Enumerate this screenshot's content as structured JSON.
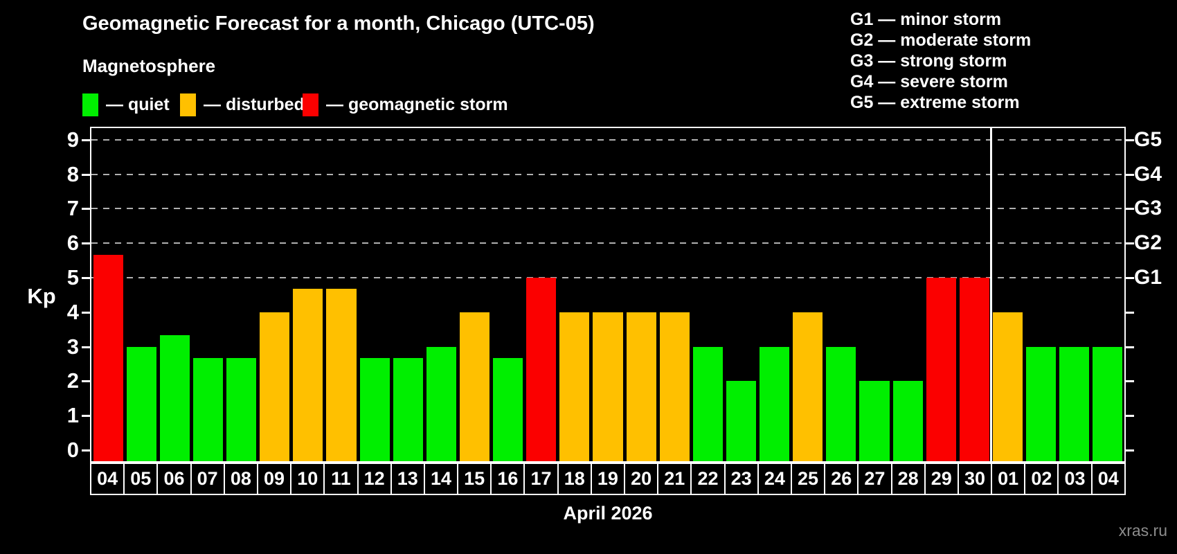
{
  "header": {
    "title": "Geomagnetic Forecast for a month, Chicago (UTC-05)",
    "subtitle": "Magnetosphere"
  },
  "legend": {
    "quiet": "— quiet",
    "disturbed": "— disturbed",
    "storm": "— geomagnetic storm"
  },
  "g_legend": {
    "lines": [
      "G1 — minor storm",
      "G2 — moderate storm",
      "G3 — strong storm",
      "G4 — severe storm",
      "G5 — extreme storm"
    ]
  },
  "footer": {
    "x_axis_title": "April 2026",
    "watermark": "xras.ru"
  },
  "chart_data": {
    "type": "bar",
    "title": "Geomagnetic Forecast for a month, Chicago (UTC-05)",
    "subtitle": "Magnetosphere",
    "xlabel": "April 2026",
    "ylabel": "Kp",
    "ylim": [
      0,
      9
    ],
    "grid": "horizontal dashed lines at Kp 5,6,7,8,9",
    "categories": [
      "04",
      "05",
      "06",
      "07",
      "08",
      "09",
      "10",
      "11",
      "12",
      "13",
      "14",
      "15",
      "16",
      "17",
      "18",
      "19",
      "20",
      "21",
      "22",
      "23",
      "24",
      "25",
      "26",
      "27",
      "28",
      "29",
      "30",
      "01",
      "02",
      "03",
      "04"
    ],
    "values": [
      5.67,
      3.0,
      3.33,
      2.67,
      2.67,
      4.0,
      4.67,
      4.67,
      2.67,
      2.67,
      3.0,
      4.0,
      2.67,
      5.0,
      4.0,
      4.0,
      4.0,
      4.0,
      3.0,
      2.0,
      3.0,
      4.0,
      3.0,
      2.0,
      2.0,
      5.0,
      5.0,
      4.0,
      3.0,
      3.0,
      3.0
    ],
    "statuses": [
      "storm",
      "quiet",
      "quiet",
      "quiet",
      "quiet",
      "disturbed",
      "disturbed",
      "disturbed",
      "quiet",
      "quiet",
      "quiet",
      "disturbed",
      "quiet",
      "storm",
      "disturbed",
      "disturbed",
      "disturbed",
      "disturbed",
      "quiet",
      "quiet",
      "quiet",
      "disturbed",
      "quiet",
      "quiet",
      "quiet",
      "storm",
      "storm",
      "disturbed",
      "quiet",
      "quiet",
      "quiet"
    ],
    "status_colors": {
      "quiet": "#00ef00",
      "disturbed": "#ffc000",
      "storm": "#fb0000"
    },
    "left_axis_ticks": [
      0,
      1,
      2,
      3,
      4,
      5,
      6,
      7,
      8,
      9
    ],
    "right_axis": [
      {
        "kp": 5,
        "label": "G1"
      },
      {
        "kp": 6,
        "label": "G2"
      },
      {
        "kp": 7,
        "label": "G3"
      },
      {
        "kp": 8,
        "label": "G4"
      },
      {
        "kp": 9,
        "label": "G5"
      }
    ],
    "separator_before_index": 27,
    "legend_position": "top-left",
    "background": "#000000",
    "gridline_color": "#b0b0b0"
  }
}
